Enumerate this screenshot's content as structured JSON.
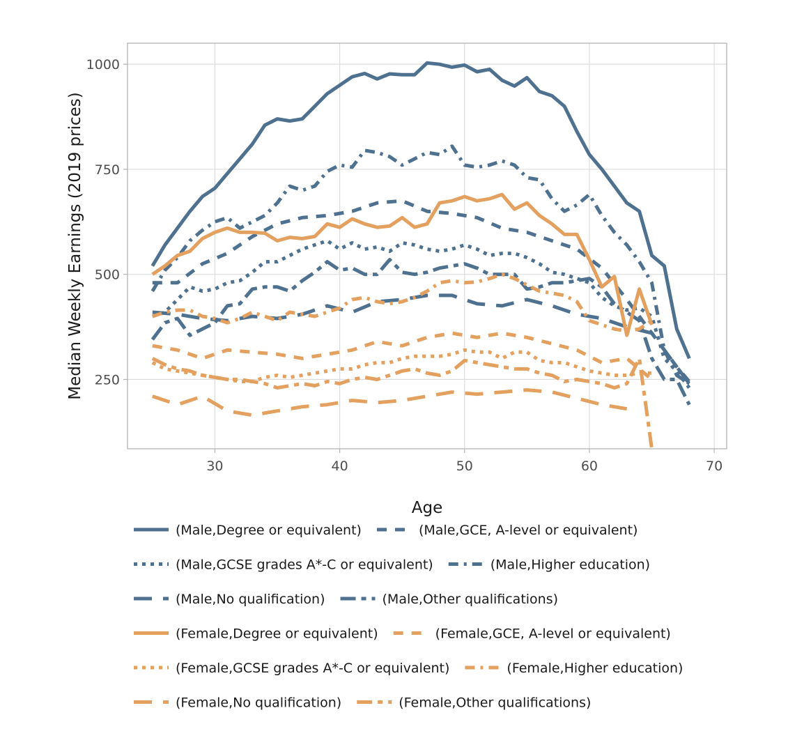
{
  "chart_data": {
    "type": "line",
    "xlabel": "Age",
    "ylabel": "Median Weekly Earnings (2019 prices)",
    "xlim": [
      23,
      71
    ],
    "ylim": [
      85,
      1050
    ],
    "x_ticks": [
      30,
      40,
      50,
      60,
      70
    ],
    "y_ticks": [
      250,
      500,
      750,
      1000
    ],
    "grid": true,
    "legend_position": "bottom",
    "colors": {
      "male": "#4f7190",
      "female": "#e3a05f"
    },
    "series": [
      {
        "name": "(Male,Degree or equivalent)",
        "color": "#4f7190",
        "dash": "solid",
        "x": [
          25,
          26,
          27,
          28,
          29,
          30,
          31,
          32,
          33,
          34,
          35,
          36,
          37,
          38,
          39,
          40,
          41,
          42,
          43,
          44,
          45,
          46,
          47,
          48,
          49,
          50,
          51,
          52,
          53,
          54,
          55,
          56,
          57,
          58,
          59,
          60,
          61,
          62,
          63,
          64,
          65,
          66,
          67,
          68
        ],
        "y": [
          520,
          570,
          610,
          650,
          685,
          705,
          740,
          775,
          810,
          855,
          870,
          865,
          870,
          900,
          930,
          950,
          970,
          978,
          965,
          977,
          975,
          975,
          1003,
          1000,
          993,
          998,
          982,
          988,
          962,
          948,
          968,
          935,
          925,
          900,
          840,
          785,
          750,
          710,
          670,
          650,
          545,
          520,
          370,
          300
        ]
      },
      {
        "name": "(Male,GCE, A-level or equivalent)",
        "color": "#4f7190",
        "dash": "dash",
        "x": [
          25,
          27,
          29,
          31,
          33,
          35,
          37,
          39,
          41,
          43,
          45,
          47,
          49,
          51,
          53,
          55,
          57,
          59,
          61,
          63,
          65,
          67,
          68
        ],
        "y": [
          480,
          480,
          525,
          550,
          590,
          620,
          635,
          640,
          650,
          670,
          675,
          650,
          645,
          635,
          610,
          600,
          580,
          560,
          515,
          440,
          360,
          280,
          245
        ]
      },
      {
        "name": "(Male,GCSE grades A*-C or equivalent)",
        "color": "#4f7190",
        "dash": "dot",
        "x": [
          25,
          26,
          27,
          28,
          29,
          30,
          31,
          32,
          33,
          34,
          35,
          36,
          37,
          38,
          39,
          40,
          41,
          42,
          43,
          44,
          45,
          46,
          47,
          48,
          49,
          50,
          51,
          52,
          53,
          54,
          55,
          56,
          57,
          58,
          59,
          60,
          61,
          62,
          63,
          64,
          65,
          66,
          67,
          68
        ],
        "y": [
          400,
          410,
          440,
          470,
          460,
          465,
          480,
          485,
          505,
          530,
          530,
          545,
          560,
          570,
          580,
          560,
          575,
          560,
          565,
          555,
          575,
          570,
          560,
          555,
          560,
          570,
          560,
          545,
          550,
          550,
          540,
          525,
          505,
          500,
          490,
          480,
          445,
          425,
          415,
          420,
          400,
          300,
          270,
          230
        ]
      },
      {
        "name": "(Male,Higher education)",
        "color": "#4f7190",
        "dash": "dashdot",
        "x": [
          25,
          26,
          27,
          28,
          29,
          30,
          31,
          32,
          33,
          34,
          35,
          36,
          37,
          38,
          39,
          40,
          41,
          42,
          43,
          44,
          45,
          46,
          47,
          48,
          49,
          50,
          51,
          52,
          53,
          54,
          55,
          56,
          57,
          58,
          59,
          60,
          61,
          62,
          63,
          64,
          65,
          66,
          67,
          68
        ],
        "y": [
          460,
          510,
          540,
          580,
          605,
          625,
          635,
          610,
          625,
          640,
          670,
          710,
          700,
          710,
          745,
          760,
          755,
          795,
          790,
          780,
          760,
          775,
          790,
          785,
          805,
          760,
          755,
          760,
          770,
          760,
          730,
          725,
          680,
          650,
          665,
          690,
          640,
          600,
          570,
          530,
          480,
          320,
          260,
          240
        ]
      },
      {
        "name": "(Male,No qualification)",
        "color": "#4f7190",
        "dash": "longdash",
        "x": [
          25,
          27,
          29,
          31,
          33,
          35,
          37,
          39,
          41,
          43,
          45,
          47,
          49,
          51,
          53,
          55,
          57,
          59,
          61,
          63,
          65,
          67,
          68
        ],
        "y": [
          410,
          405,
          395,
          390,
          400,
          395,
          405,
          425,
          410,
          435,
          440,
          450,
          450,
          430,
          425,
          440,
          425,
          405,
          395,
          375,
          360,
          280,
          240
        ]
      },
      {
        "name": "(Male,Other qualifications)",
        "color": "#4f7190",
        "dash": "twodash",
        "x": [
          25,
          26,
          27,
          28,
          29,
          30,
          31,
          32,
          33,
          34,
          35,
          36,
          37,
          38,
          39,
          40,
          41,
          42,
          43,
          44,
          45,
          46,
          47,
          48,
          49,
          50,
          51,
          52,
          53,
          54,
          55,
          56,
          57,
          58,
          59,
          60,
          61,
          62,
          63,
          64,
          65,
          66,
          67,
          68
        ],
        "y": [
          345,
          385,
          395,
          355,
          370,
          385,
          425,
          430,
          465,
          470,
          470,
          460,
          485,
          505,
          530,
          510,
          515,
          500,
          500,
          535,
          505,
          500,
          505,
          515,
          520,
          525,
          515,
          500,
          500,
          500,
          465,
          470,
          480,
          480,
          485,
          490,
          470,
          430,
          410,
          390,
          300,
          250,
          250,
          190
        ]
      },
      {
        "name": "(Female,Degree or equivalent)",
        "color": "#e3a05f",
        "dash": "solid",
        "x": [
          25,
          26,
          27,
          28,
          29,
          30,
          31,
          32,
          33,
          34,
          35,
          36,
          37,
          38,
          39,
          40,
          41,
          42,
          43,
          44,
          45,
          46,
          47,
          48,
          49,
          50,
          51,
          52,
          53,
          54,
          55,
          56,
          57,
          58,
          59,
          60,
          61,
          62,
          63,
          64,
          65
        ],
        "y": [
          500,
          520,
          545,
          555,
          585,
          600,
          610,
          600,
          600,
          598,
          580,
          588,
          585,
          590,
          620,
          612,
          632,
          620,
          612,
          615,
          635,
          612,
          620,
          670,
          675,
          685,
          675,
          680,
          690,
          655,
          670,
          640,
          620,
          595,
          595,
          535,
          470,
          495,
          355,
          465,
          380
        ]
      },
      {
        "name": "(Female,GCE, A-level or equivalent)",
        "color": "#e3a05f",
        "dash": "dash",
        "x": [
          25,
          27,
          29,
          31,
          33,
          35,
          37,
          39,
          41,
          43,
          45,
          47,
          49,
          51,
          53,
          55,
          57,
          59,
          61,
          63,
          65
        ],
        "y": [
          330,
          320,
          300,
          320,
          315,
          310,
          300,
          310,
          320,
          340,
          330,
          350,
          360,
          350,
          360,
          350,
          335,
          320,
          290,
          300,
          250
        ]
      },
      {
        "name": "(Female,GCSE grades A*-C or equivalent)",
        "color": "#e3a05f",
        "dash": "dot",
        "x": [
          25,
          26,
          27,
          28,
          29,
          30,
          31,
          32,
          33,
          34,
          35,
          36,
          37,
          38,
          39,
          40,
          41,
          42,
          43,
          44,
          45,
          46,
          47,
          48,
          49,
          50,
          51,
          52,
          53,
          54,
          55,
          56,
          57,
          58,
          59,
          60,
          61,
          62,
          63,
          64,
          65
        ],
        "y": [
          290,
          275,
          270,
          265,
          260,
          255,
          250,
          245,
          245,
          255,
          260,
          255,
          260,
          265,
          270,
          275,
          275,
          285,
          290,
          290,
          300,
          305,
          305,
          305,
          310,
          320,
          315,
          315,
          300,
          315,
          315,
          295,
          290,
          290,
          280,
          270,
          265,
          260,
          260,
          265,
          265
        ]
      },
      {
        "name": "(Female,Higher education)",
        "color": "#e3a05f",
        "dash": "dashdot",
        "x": [
          25,
          26,
          27,
          28,
          29,
          30,
          31,
          32,
          33,
          34,
          35,
          36,
          37,
          38,
          39,
          40,
          41,
          42,
          43,
          44,
          45,
          46,
          47,
          48,
          49,
          50,
          51,
          52,
          53,
          54,
          55,
          56,
          57,
          58,
          59,
          60,
          61,
          62,
          63,
          64,
          65
        ],
        "y": [
          400,
          410,
          415,
          415,
          400,
          395,
          385,
          395,
          410,
          400,
          390,
          410,
          405,
          400,
          410,
          420,
          440,
          445,
          435,
          430,
          435,
          445,
          460,
          480,
          485,
          480,
          482,
          490,
          500,
          490,
          475,
          460,
          455,
          450,
          435,
          390,
          380,
          370,
          365,
          370,
          390
        ]
      },
      {
        "name": "(Female,No qualification)",
        "color": "#e3a05f",
        "dash": "longdash",
        "x": [
          25,
          27,
          29,
          31,
          33,
          35,
          37,
          39,
          41,
          43,
          45,
          47,
          49,
          51,
          53,
          55,
          57,
          59,
          61,
          63
        ],
        "y": [
          210,
          190,
          210,
          175,
          165,
          175,
          185,
          190,
          200,
          195,
          200,
          210,
          220,
          215,
          220,
          225,
          220,
          205,
          190,
          180
        ]
      },
      {
        "name": "(Female,Other qualifications)",
        "color": "#e3a05f",
        "dash": "twodash",
        "x": [
          25,
          26,
          27,
          28,
          29,
          30,
          31,
          32,
          33,
          34,
          35,
          36,
          37,
          38,
          39,
          40,
          41,
          42,
          43,
          44,
          45,
          46,
          47,
          48,
          49,
          50,
          51,
          52,
          53,
          54,
          55,
          56,
          57,
          58,
          59,
          60,
          61,
          62,
          63,
          64,
          65
        ],
        "y": [
          300,
          285,
          275,
          270,
          260,
          255,
          250,
          250,
          245,
          240,
          230,
          235,
          240,
          235,
          245,
          240,
          250,
          255,
          250,
          260,
          270,
          275,
          265,
          260,
          270,
          295,
          290,
          285,
          280,
          275,
          275,
          265,
          260,
          245,
          250,
          245,
          240,
          230,
          240,
          300,
          85
        ]
      }
    ]
  }
}
